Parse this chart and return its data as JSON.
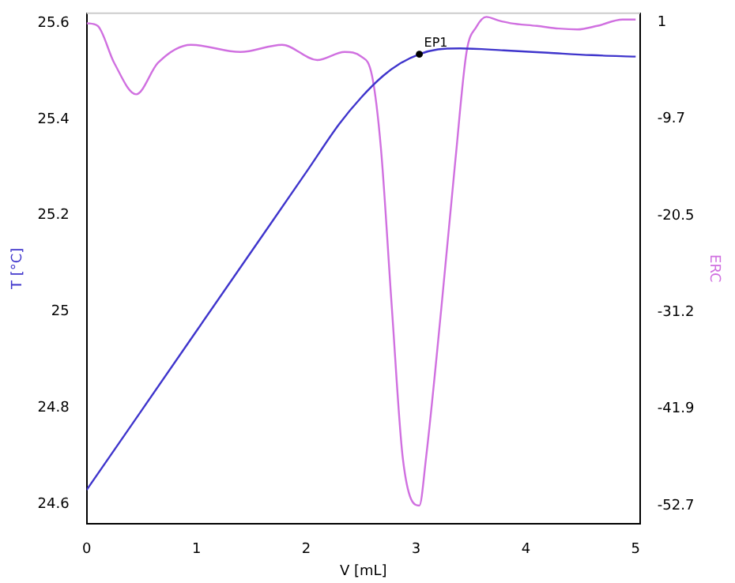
{
  "chart_data": {
    "type": "line",
    "xlabel": "V [mL]",
    "ylabel": "T [°C]",
    "y2label": "ERC",
    "xlim": [
      0,
      5.04
    ],
    "xticks": [
      0,
      1,
      2,
      3,
      4,
      5
    ],
    "ylim": [
      24.56,
      25.62
    ],
    "yticks": [
      24.6,
      24.8,
      25,
      25.2,
      25.4,
      25.6
    ],
    "y2lim": [
      -54.7,
      2.0
    ],
    "y2ticks": [
      1,
      -9.7,
      -20.5,
      -31.2,
      -41.9,
      -52.7
    ],
    "grid": false,
    "legend": false,
    "marker": "none",
    "line_style": "solid",
    "series": [
      {
        "color": "#3f35cc",
        "x": [
          0,
          0.5,
          1,
          1.5,
          2,
          2.3,
          2.5,
          2.7,
          2.85,
          3.03,
          3.2,
          3.4,
          3.8,
          4.2,
          4.6,
          5
        ],
        "values": [
          24.63,
          24.795,
          24.96,
          25.125,
          25.29,
          25.39,
          25.445,
          25.49,
          25.515,
          25.535,
          25.545,
          25.547,
          25.543,
          25.538,
          25.533,
          25.53
        ]
      },
      {
        "color": "#d070e0",
        "axis": "y2",
        "x": [
          0,
          0.1,
          0.25,
          0.45,
          0.65,
          0.95,
          1.4,
          1.78,
          2.1,
          2.35,
          2.5,
          2.6,
          2.68,
          2.78,
          2.88,
          3.03,
          3.09,
          3.23,
          3.36,
          3.46,
          3.55,
          3.64,
          3.75,
          3.86,
          4.1,
          4.3,
          4.47,
          4.65,
          4.88,
          5.0
        ],
        "values": [
          0.9,
          0.6,
          -3.5,
          -7.0,
          -3.5,
          -1.5,
          -2.3,
          -1.5,
          -3.2,
          -2.3,
          -2.8,
          -5,
          -13,
          -30.8,
          -47.5,
          -52.7,
          -47.5,
          -30.8,
          -14.1,
          -2.3,
          0.5,
          1.6,
          1.2,
          0.9,
          0.6,
          0.3,
          0.2,
          0.6,
          1.3,
          1.3
        ]
      }
    ],
    "annotations": [
      {
        "text": "EP1",
        "x": 3.03,
        "y": 25.535
      }
    ]
  }
}
